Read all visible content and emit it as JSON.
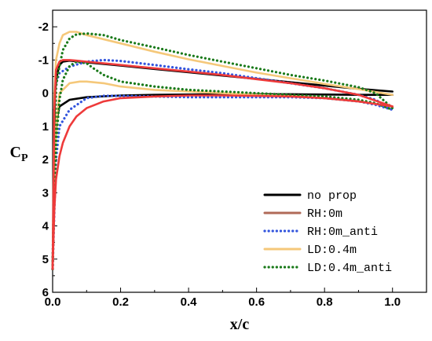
{
  "chart_data": {
    "type": "line",
    "xlabel": "x/c",
    "ylabel": "C",
    "ylabel_sub": "P",
    "xlim": [
      0.0,
      1.1
    ],
    "ylim": [
      6,
      -2.5
    ],
    "y_inverted": true,
    "grid": false,
    "legend_position": "lower-right",
    "x_ticks": [
      "0.0",
      "0.2",
      "0.4",
      "0.6",
      "0.8",
      "1.0"
    ],
    "x_tick_values": [
      0.0,
      0.2,
      0.4,
      0.6,
      0.8,
      1.0
    ],
    "y_ticks": [
      "-2",
      "-1",
      "0",
      "1",
      "2",
      "3",
      "4",
      "5",
      "6"
    ],
    "y_tick_values": [
      -2,
      -1,
      0,
      1,
      2,
      3,
      4,
      5,
      6
    ],
    "series": [
      {
        "name": "no prop",
        "color": "#000000",
        "style": "solid",
        "upper": [
          [
            0.0,
            5.3
          ],
          [
            0.003,
            3.0
          ],
          [
            0.007,
            0.0
          ],
          [
            0.012,
            -0.5
          ],
          [
            0.02,
            -0.85
          ],
          [
            0.03,
            -0.95
          ],
          [
            0.05,
            -0.98
          ],
          [
            0.1,
            -0.93
          ],
          [
            0.2,
            -0.83
          ],
          [
            0.3,
            -0.73
          ],
          [
            0.4,
            -0.63
          ],
          [
            0.5,
            -0.53
          ],
          [
            0.6,
            -0.43
          ],
          [
            0.7,
            -0.33
          ],
          [
            0.8,
            -0.23
          ],
          [
            0.9,
            -0.13
          ],
          [
            1.0,
            -0.05
          ]
        ],
        "lower": [
          [
            0.0,
            5.3
          ],
          [
            0.003,
            3.0
          ],
          [
            0.007,
            1.5
          ],
          [
            0.012,
            0.8
          ],
          [
            0.02,
            0.4
          ],
          [
            0.05,
            0.2
          ],
          [
            0.1,
            0.12
          ],
          [
            0.2,
            0.07
          ],
          [
            0.3,
            0.05
          ],
          [
            0.4,
            0.04
          ],
          [
            0.5,
            0.03
          ],
          [
            0.6,
            0.03
          ],
          [
            0.7,
            0.03
          ],
          [
            0.8,
            0.04
          ],
          [
            0.9,
            0.05
          ],
          [
            1.0,
            0.05
          ]
        ]
      },
      {
        "name": "RH:0m",
        "color": "#b06a58",
        "style": "solid",
        "hidden": true,
        "upper": [
          [
            0.0,
            5.3
          ],
          [
            0.01,
            -0.9
          ],
          [
            0.05,
            -1.02
          ],
          [
            0.1,
            -1.0
          ],
          [
            0.2,
            -0.9
          ],
          [
            0.4,
            -0.7
          ],
          [
            0.6,
            -0.45
          ],
          [
            0.8,
            -0.2
          ],
          [
            0.9,
            0.0
          ],
          [
            1.0,
            0.45
          ]
        ],
        "lower": [
          [
            0.0,
            5.3
          ],
          [
            0.01,
            3.0
          ],
          [
            0.05,
            1.0
          ],
          [
            0.1,
            0.3
          ],
          [
            0.2,
            0.2
          ],
          [
            0.4,
            0.12
          ],
          [
            0.6,
            0.15
          ],
          [
            0.8,
            0.2
          ],
          [
            0.9,
            0.35
          ],
          [
            1.0,
            0.45
          ]
        ]
      },
      {
        "name": "RH:0m_anti",
        "color": "#3355dd",
        "style": "dotted",
        "upper": [
          [
            0.0,
            5.3
          ],
          [
            0.005,
            2.0
          ],
          [
            0.01,
            -0.3
          ],
          [
            0.02,
            -0.6
          ],
          [
            0.05,
            -0.8
          ],
          [
            0.1,
            -0.95
          ],
          [
            0.15,
            -1.0
          ],
          [
            0.2,
            -0.97
          ],
          [
            0.3,
            -0.85
          ],
          [
            0.4,
            -0.72
          ],
          [
            0.5,
            -0.6
          ],
          [
            0.6,
            -0.45
          ],
          [
            0.7,
            -0.3
          ],
          [
            0.8,
            -0.15
          ],
          [
            0.9,
            0.05
          ],
          [
            0.95,
            0.2
          ],
          [
            1.0,
            0.5
          ]
        ],
        "lower": [
          [
            0.0,
            5.3
          ],
          [
            0.005,
            3.5
          ],
          [
            0.01,
            2.0
          ],
          [
            0.02,
            1.0
          ],
          [
            0.05,
            0.5
          ],
          [
            0.1,
            0.15
          ],
          [
            0.15,
            0.08
          ],
          [
            0.2,
            0.08
          ],
          [
            0.3,
            0.1
          ],
          [
            0.4,
            0.12
          ],
          [
            0.5,
            0.12
          ],
          [
            0.6,
            0.12
          ],
          [
            0.7,
            0.12
          ],
          [
            0.8,
            0.15
          ],
          [
            0.9,
            0.25
          ],
          [
            0.95,
            0.35
          ],
          [
            1.0,
            0.5
          ]
        ]
      },
      {
        "name": "LD:0.4m",
        "color": "#f5c87a",
        "style": "solid",
        "upper": [
          [
            0.0,
            5.3
          ],
          [
            0.005,
            0.0
          ],
          [
            0.01,
            -1.0
          ],
          [
            0.02,
            -1.5
          ],
          [
            0.03,
            -1.75
          ],
          [
            0.05,
            -1.85
          ],
          [
            0.07,
            -1.85
          ],
          [
            0.1,
            -1.75
          ],
          [
            0.2,
            -1.5
          ],
          [
            0.3,
            -1.25
          ],
          [
            0.4,
            -1.02
          ],
          [
            0.5,
            -0.82
          ],
          [
            0.6,
            -0.62
          ],
          [
            0.7,
            -0.45
          ],
          [
            0.8,
            -0.28
          ],
          [
            0.9,
            -0.12
          ],
          [
            1.0,
            0.05
          ]
        ],
        "lower": [
          [
            0.0,
            5.3
          ],
          [
            0.005,
            2.5
          ],
          [
            0.01,
            1.0
          ],
          [
            0.02,
            0.0
          ],
          [
            0.05,
            -0.3
          ],
          [
            0.08,
            -0.35
          ],
          [
            0.1,
            -0.35
          ],
          [
            0.15,
            -0.3
          ],
          [
            0.2,
            -0.2
          ],
          [
            0.3,
            -0.1
          ],
          [
            0.4,
            -0.05
          ],
          [
            0.5,
            0.0
          ],
          [
            0.6,
            0.05
          ],
          [
            0.7,
            0.08
          ],
          [
            0.8,
            0.15
          ],
          [
            0.9,
            0.25
          ],
          [
            1.0,
            0.4
          ]
        ]
      },
      {
        "name": "LD:0.4m_anti",
        "color": "#1a7a1a",
        "style": "dotted",
        "upper": [
          [
            0.0,
            5.3
          ],
          [
            0.005,
            2.0
          ],
          [
            0.01,
            -0.2
          ],
          [
            0.02,
            -0.8
          ],
          [
            0.03,
            -1.3
          ],
          [
            0.05,
            -1.65
          ],
          [
            0.07,
            -1.77
          ],
          [
            0.1,
            -1.8
          ],
          [
            0.15,
            -1.75
          ],
          [
            0.2,
            -1.6
          ],
          [
            0.3,
            -1.38
          ],
          [
            0.4,
            -1.15
          ],
          [
            0.5,
            -0.95
          ],
          [
            0.6,
            -0.75
          ],
          [
            0.7,
            -0.55
          ],
          [
            0.8,
            -0.38
          ],
          [
            0.9,
            -0.18
          ],
          [
            0.95,
            0.0
          ],
          [
            1.0,
            0.45
          ]
        ],
        "lower": [
          [
            0.0,
            5.3
          ],
          [
            0.005,
            3.0
          ],
          [
            0.01,
            1.5
          ],
          [
            0.02,
            0.2
          ],
          [
            0.03,
            -0.4
          ],
          [
            0.05,
            -0.82
          ],
          [
            0.07,
            -0.95
          ],
          [
            0.1,
            -0.9
          ],
          [
            0.12,
            -0.75
          ],
          [
            0.15,
            -0.55
          ],
          [
            0.2,
            -0.35
          ],
          [
            0.3,
            -0.2
          ],
          [
            0.4,
            -0.1
          ],
          [
            0.5,
            -0.05
          ],
          [
            0.6,
            0.0
          ],
          [
            0.7,
            0.05
          ],
          [
            0.8,
            0.1
          ],
          [
            0.9,
            0.2
          ],
          [
            0.95,
            0.3
          ],
          [
            1.0,
            0.5
          ]
        ]
      },
      {
        "name": "",
        "color": "#ee3a3a",
        "style": "solid",
        "in_legend": false,
        "upper": [
          [
            0.0,
            5.3
          ],
          [
            0.005,
            0.5
          ],
          [
            0.01,
            -0.7
          ],
          [
            0.02,
            -0.95
          ],
          [
            0.03,
            -1.0
          ],
          [
            0.05,
            -1.0
          ],
          [
            0.07,
            -0.98
          ],
          [
            0.1,
            -0.95
          ],
          [
            0.15,
            -0.9
          ],
          [
            0.2,
            -0.85
          ],
          [
            0.3,
            -0.75
          ],
          [
            0.4,
            -0.65
          ],
          [
            0.5,
            -0.55
          ],
          [
            0.6,
            -0.42
          ],
          [
            0.7,
            -0.3
          ],
          [
            0.8,
            -0.15
          ],
          [
            0.9,
            0.05
          ],
          [
            1.0,
            0.4
          ]
        ],
        "lower": [
          [
            0.0,
            5.3
          ],
          [
            0.005,
            3.5
          ],
          [
            0.01,
            2.6
          ],
          [
            0.02,
            1.9
          ],
          [
            0.03,
            1.5
          ],
          [
            0.05,
            1.0
          ],
          [
            0.07,
            0.7
          ],
          [
            0.1,
            0.45
          ],
          [
            0.15,
            0.25
          ],
          [
            0.2,
            0.15
          ],
          [
            0.3,
            0.1
          ],
          [
            0.4,
            0.07
          ],
          [
            0.5,
            0.07
          ],
          [
            0.6,
            0.08
          ],
          [
            0.7,
            0.1
          ],
          [
            0.8,
            0.15
          ],
          [
            0.9,
            0.25
          ],
          [
            1.0,
            0.4
          ]
        ]
      }
    ]
  }
}
